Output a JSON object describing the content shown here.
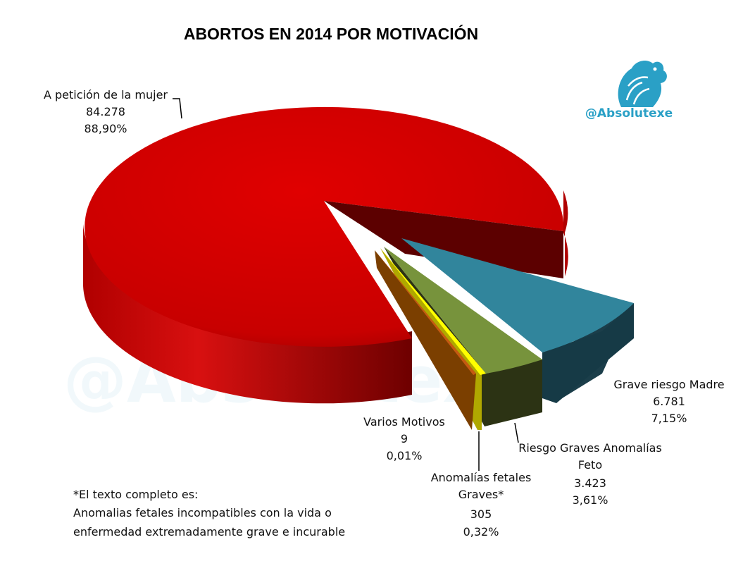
{
  "chart_data": {
    "type": "pie",
    "title": "ABORTOS EN 2014 POR MOTIVACIÓN",
    "slices": [
      {
        "name": "A petición de la mujer",
        "value": 84278,
        "value_label": "84.278",
        "percent_label": "88,90%",
        "color": "#cc0000"
      },
      {
        "name": "Grave riesgo Madre",
        "value": 6781,
        "value_label": "6.781",
        "percent_label": "7,15%",
        "color": "#31859c"
      },
      {
        "name": "Riesgo Graves Anomalías Feto",
        "value": 3423,
        "value_label": "3.423",
        "percent_label": "3,61%",
        "color": "#77933c"
      },
      {
        "name": "Anomalías fetales Graves*",
        "value": 305,
        "value_label": "305",
        "percent_label": "0,32%",
        "color": "#ffff00"
      },
      {
        "name": "Varios Motivos",
        "value": 9,
        "value_label": "9",
        "percent_label": "0,01%",
        "color": "#c55a11"
      }
    ]
  },
  "watermark": {
    "handle": "@Absolutexe",
    "large": "@Absolutexe"
  },
  "footnote": {
    "line1": "*El texto completo es:",
    "line2": "Anomalias fetales incompatibles con la vida o",
    "line3": "enfermedad extremadamente grave e incurable"
  }
}
